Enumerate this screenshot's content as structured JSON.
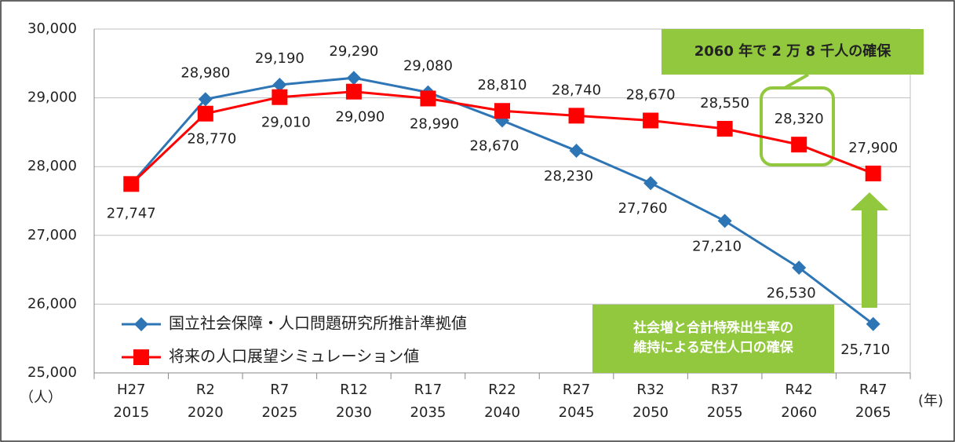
{
  "chart_data": {
    "type": "line",
    "categories": [
      [
        "H27",
        "2015"
      ],
      [
        "R2",
        "2020"
      ],
      [
        "R7",
        "2025"
      ],
      [
        "R12",
        "2030"
      ],
      [
        "R17",
        "2035"
      ],
      [
        "R22",
        "2040"
      ],
      [
        "R27",
        "2045"
      ],
      [
        "R32",
        "2050"
      ],
      [
        "R37",
        "2055"
      ],
      [
        "R42",
        "2060"
      ],
      [
        "R47",
        "2065"
      ]
    ],
    "series": [
      {
        "name": "国立社会保障・人口問題研究所推計準拠値",
        "color": "#2e75b6",
        "marker": "diamond",
        "values": [
          27747,
          28980,
          29190,
          29290,
          29080,
          28670,
          28230,
          27760,
          27210,
          26530,
          25710
        ],
        "value_labels": [
          "27,747",
          "28,980",
          "29,190",
          "29,290",
          "29,080",
          "28,670",
          "28,230",
          "27,760",
          "27,210",
          "26,530",
          "25,710"
        ]
      },
      {
        "name": "将来の人口展望シミュレーション値",
        "color": "#ff0000",
        "marker": "square",
        "values": [
          27747,
          28770,
          29010,
          29090,
          28990,
          28810,
          28740,
          28670,
          28550,
          28320,
          27900
        ],
        "value_labels": [
          null,
          "28,770",
          "29,010",
          "29,090",
          "28,990",
          "28,810",
          "28,740",
          "28,670",
          "28,550",
          "28,320",
          "27,900"
        ]
      }
    ],
    "ylim": [
      25000,
      30000
    ],
    "yticks": [
      {
        "value": 25000,
        "label": "25,000"
      },
      {
        "value": 26000,
        "label": "26,000"
      },
      {
        "value": 27000,
        "label": "27,000"
      },
      {
        "value": 28000,
        "label": "28,000"
      },
      {
        "value": 29000,
        "label": "29,000"
      },
      {
        "value": 30000,
        "label": "30,000"
      }
    ],
    "y_unit": "（人）",
    "x_unit": "(年)",
    "grid": true,
    "annotations": [
      "2060 年で 2 万 8 千人の確保",
      [
        "社会増と合計特殊出生率の",
        "維持による定住人口の確保"
      ]
    ]
  }
}
